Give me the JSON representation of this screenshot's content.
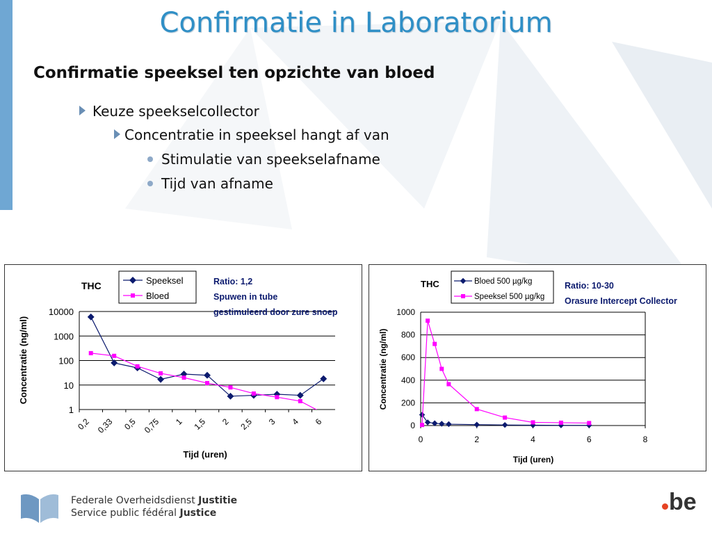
{
  "header": {
    "title": "Confirmatie in Laboratorium",
    "subtitle": "Confirmatie speeksel ten opzichte van bloed"
  },
  "bullets": [
    {
      "level": 1,
      "text": "Keuze speekselcollector"
    },
    {
      "level": 2,
      "text": "Concentratie in speeksel hangt af van"
    },
    {
      "level": 3,
      "text": "Stimulatie van speekselafname"
    },
    {
      "level": 3,
      "text": "Tijd van afname"
    }
  ],
  "colors": {
    "title": "#2f8fc6",
    "series_dark": "#0b1a6e",
    "series_magenta": "#ff00ff",
    "left_bar": "#6fa7d3"
  },
  "chart_data": [
    {
      "type": "line",
      "title": "THC",
      "xlabel": "Tijd (uren)",
      "ylabel": "Concentratie (ng/ml)",
      "yscale": "log",
      "ylim": [
        1,
        10000
      ],
      "yticks": [
        "1",
        "10",
        "100",
        "1000",
        "10000"
      ],
      "categories": [
        "0,2",
        "0,33",
        "0,5",
        "0,75",
        "1",
        "1,5",
        "2",
        "2,5",
        "3",
        "4",
        "6"
      ],
      "series": [
        {
          "name": "Speeksel",
          "values": [
            6000,
            80,
            50,
            17,
            28,
            25,
            3.5,
            3.8,
            4.2,
            3.8,
            18
          ]
        },
        {
          "name": "Bloed",
          "values": [
            200,
            155,
            58,
            30,
            20,
            12,
            8,
            4.5,
            3.2,
            2.2,
            0.7
          ]
        }
      ],
      "legend": "top",
      "grid": true,
      "annotations": [
        "Ratio: 1,2",
        "Spuwen in tube",
        "gestimuleerd door zure snoep"
      ]
    },
    {
      "type": "line",
      "title": "THC",
      "xlabel": "Tijd (uren)",
      "ylabel": "Concentratie (ng/ml)",
      "ylim": [
        0,
        1000
      ],
      "xlim": [
        0,
        8
      ],
      "yticks": [
        "0",
        "200",
        "400",
        "600",
        "800",
        "1000"
      ],
      "xticks": [
        "0",
        "2",
        "4",
        "6",
        "8"
      ],
      "series": [
        {
          "name": "Bloed 500 µg/kg",
          "x": [
            0.05,
            0.25,
            0.5,
            0.75,
            1,
            2,
            3,
            4,
            5,
            6
          ],
          "values": [
            95,
            28,
            20,
            15,
            12,
            8,
            5,
            3,
            2,
            2
          ]
        },
        {
          "name": "Speeksel  500 µg/kg",
          "x": [
            0.05,
            0.25,
            0.5,
            0.75,
            1,
            2,
            3,
            4,
            5,
            6
          ],
          "values": [
            5,
            925,
            720,
            500,
            365,
            145,
            70,
            28,
            25,
            22
          ]
        }
      ],
      "legend": "top",
      "grid": true,
      "annotations": [
        "Ratio: 10-30",
        "Orasure Intercept Collector"
      ]
    }
  ],
  "footer": {
    "line1_prefix": "Federale Overheidsdienst ",
    "line1_bold": "Justitie",
    "line2_prefix": "Service public fédéral ",
    "line2_bold": "Justice",
    "logo_text": "be"
  }
}
